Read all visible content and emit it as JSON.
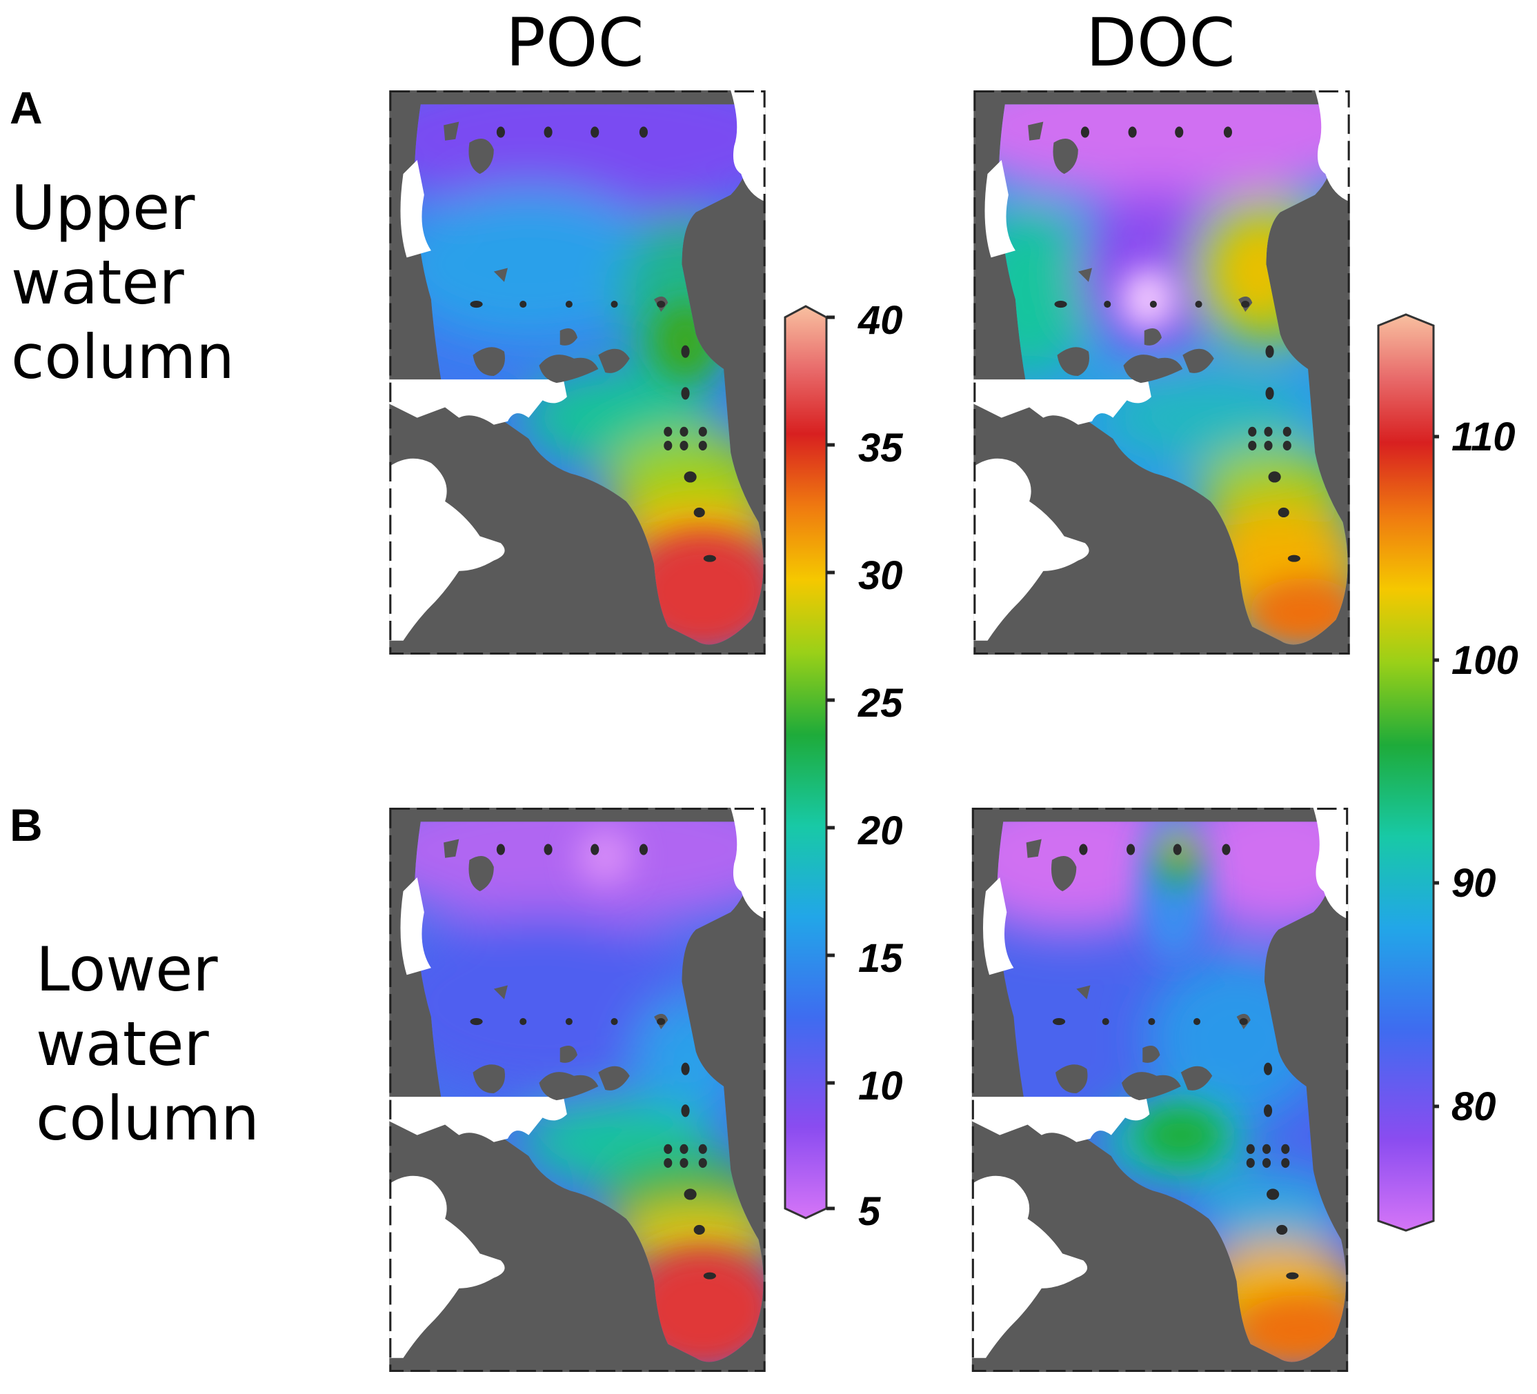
{
  "columns": {
    "left_title": "POC",
    "right_title": "DOC"
  },
  "rows": [
    {
      "letter": "A",
      "label": "Upper\nwater\ncolumn"
    },
    {
      "letter": "B",
      "label": "Lower\nwater\ncolumn"
    }
  ],
  "colorbars": {
    "poc": {
      "ticks": [
        "40",
        "35",
        "30",
        "25",
        "20",
        "15",
        "10",
        "5"
      ]
    },
    "doc": {
      "ticks": [
        "110",
        "100",
        "90",
        "80"
      ]
    }
  },
  "colors": {
    "land": "#5a5a5a",
    "lake": "#ffffff",
    "station": "#2a2a2a",
    "scale": [
      "#cc66f0",
      "#8a4cf0",
      "#3e6cf0",
      "#22a6e8",
      "#18c9a6",
      "#1eab3a",
      "#9ad018",
      "#f5c800",
      "#ef7a10",
      "#d82020",
      "#f0a090"
    ]
  },
  "maps": [
    {
      "id": "poc-upper",
      "variable": "POC",
      "layer": "Upper water column"
    },
    {
      "id": "doc-upper",
      "variable": "DOC",
      "layer": "Upper water column"
    },
    {
      "id": "poc-lower",
      "variable": "POC",
      "layer": "Lower water column"
    },
    {
      "id": "doc-lower",
      "variable": "DOC",
      "layer": "Lower water column"
    }
  ]
}
